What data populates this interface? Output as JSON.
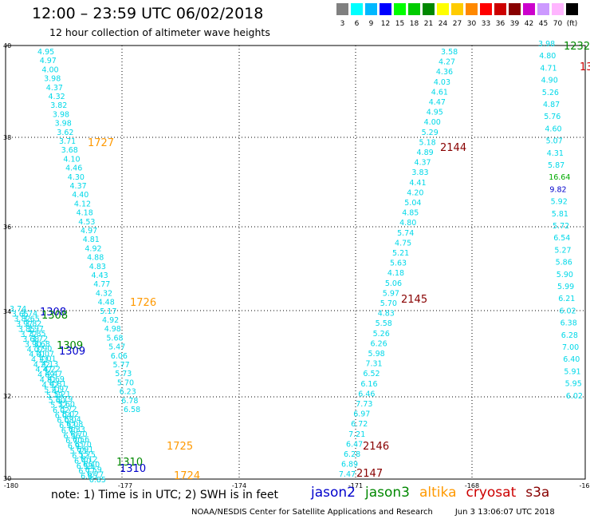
{
  "title": "12:00 – 23:59 UTC 06/02/2018",
  "subtitle": "12 hour collection of altimeter wave heights",
  "colors": {
    "jason2": "#0000cc",
    "jason3": "#008800",
    "altika": "#ff9900",
    "cryosat": "#cc0000",
    "s3a": "#880000",
    "hs": "#00d8e8",
    "grid": "#000000",
    "plot_bg": "#ffffff"
  },
  "legend": {
    "swatches": [
      "#808080",
      "#00ffff",
      "#00b8ff",
      "#0000ff",
      "#00ff00",
      "#00cc00",
      "#008800",
      "#ffff00",
      "#ffcc00",
      "#ff8800",
      "#ff0000",
      "#cc0000",
      "#880000",
      "#cc00cc",
      "#cc99ff",
      "#ffb6ff",
      "#000000"
    ],
    "labels": [
      "3",
      "6",
      "9",
      "12",
      "15",
      "18",
      "21",
      "24",
      "27",
      "30",
      "33",
      "36",
      "39",
      "42",
      "45",
      "70",
      "(ft)"
    ]
  },
  "map": {
    "lon_ticks": [
      "-180",
      "-177",
      "-174",
      "-171",
      "-168",
      "-16"
    ],
    "lat_ticks": [
      "40",
      "38",
      "36",
      "34",
      "32",
      "30"
    ]
  },
  "tracks": [
    {
      "pass_labels": [
        {
          "text": "1727",
          "sat": "altika"
        },
        {
          "text": "1726",
          "sat": "altika"
        },
        {
          "text": "1725",
          "sat": "altika"
        },
        {
          "text": "1724",
          "sat": "altika"
        }
      ],
      "values": [
        "4.95",
        "4.97",
        "4.00",
        "3.98",
        "4.37",
        "4.32",
        "3.82",
        "3.98",
        "3.98",
        "3.62",
        "3.71",
        "3.68",
        "4.10",
        "4.46",
        "4.30",
        "4.37",
        "4.40",
        "4.12",
        "4.18",
        "4.53",
        "4.97",
        "4.81",
        "4.92",
        "4.88",
        "4.83",
        "4.43",
        "4.77",
        "4.32",
        "4.48",
        "5.17",
        "4.92",
        "4.98",
        "5.68",
        "5.47",
        "6.06",
        "5.77",
        "5.73",
        "5.70",
        "6.23",
        "6.78",
        "6.58"
      ]
    },
    {
      "pass_labels": [
        {
          "text": "2144",
          "sat": "s3a"
        },
        {
          "text": "2145",
          "sat": "s3a"
        },
        {
          "text": "2146",
          "sat": "s3a"
        },
        {
          "text": "2147",
          "sat": "s3a"
        }
      ],
      "values": [
        "3.58",
        "4.27",
        "4.36",
        "4.03",
        "4.61",
        "4.47",
        "4.95",
        "4.00",
        "5.29",
        "5.18",
        "4.89",
        "4.37",
        "3.83",
        "4.41",
        "4.20",
        "5.04",
        "4.85",
        "4.80",
        "5.74",
        "4.75",
        "5.21",
        "5.63",
        "4.18",
        "5.06",
        "5.97",
        "5.70",
        "4.83",
        "5.58",
        "5.26",
        "6.26",
        "5.98",
        "7.31",
        "6.52",
        "6.16",
        "6.46",
        "7.73",
        "6.97",
        "6.72",
        "7.21",
        "6.47",
        "6.28",
        "6.89",
        "7.47"
      ]
    },
    {
      "pass_labels": [
        {
          "text": "1232",
          "sat": "jason3"
        },
        {
          "text": "13",
          "sat": "cryosat"
        }
      ],
      "values": [
        "3.98",
        "4.80",
        "4.71",
        "4.90",
        "5.26",
        "4.87",
        "5.76",
        "4.60",
        "5.07",
        "4.31",
        "5.87",
        "16.64",
        "9.82",
        "5.92",
        "5.81",
        "5.72",
        "6.54",
        "5.27",
        "5.86",
        "5.90",
        "5.99",
        "6.21",
        "6.02",
        "6.38",
        "6.28",
        "7.00",
        "6.40",
        "5.91",
        "5.95",
        "6.02"
      ]
    },
    {
      "pass_labels": [
        {
          "text": "1308",
          "sat": "jason2"
        },
        {
          "text": "1308",
          "sat": "jason3"
        },
        {
          "text": "1309",
          "sat": "jason3"
        },
        {
          "text": "1309",
          "sat": "jason2"
        },
        {
          "text": "1310",
          "sat": "jason3"
        },
        {
          "text": "1310",
          "sat": "jason2"
        }
      ],
      "values": [
        "3.74",
        "3.65",
        "3.82",
        "3.97",
        "3.85",
        "3.72",
        "3.68",
        "3.90",
        "4.07",
        "4.01",
        "4.13",
        "4.22",
        "4.47",
        "4.69",
        "4.81",
        "4.97",
        "5.21",
        "5.19",
        "5.60",
        "5.72",
        "6.02",
        "6.04",
        "6.08",
        "6.33",
        "6.70",
        "6.56",
        "6.70",
        "6.91",
        "5.75",
        "6.12",
        "6.40",
        "6.59",
        "6.77",
        "6.85"
      ]
    }
  ],
  "note": "note:  1) Time is in UTC;  2) SWH is in feet",
  "satellites": [
    {
      "name": "jason2",
      "color": "#0000cc"
    },
    {
      "name": "jason3",
      "color": "#008800"
    },
    {
      "name": "altika",
      "color": "#ff9900"
    },
    {
      "name": "cryosat",
      "color": "#cc0000"
    },
    {
      "name": "s3a",
      "color": "#880000"
    }
  ],
  "credit": "NOAA/NESDIS Center for Satellite Applications and Research",
  "timestamp": "Jun  3 13:06:07 UTC 2018"
}
